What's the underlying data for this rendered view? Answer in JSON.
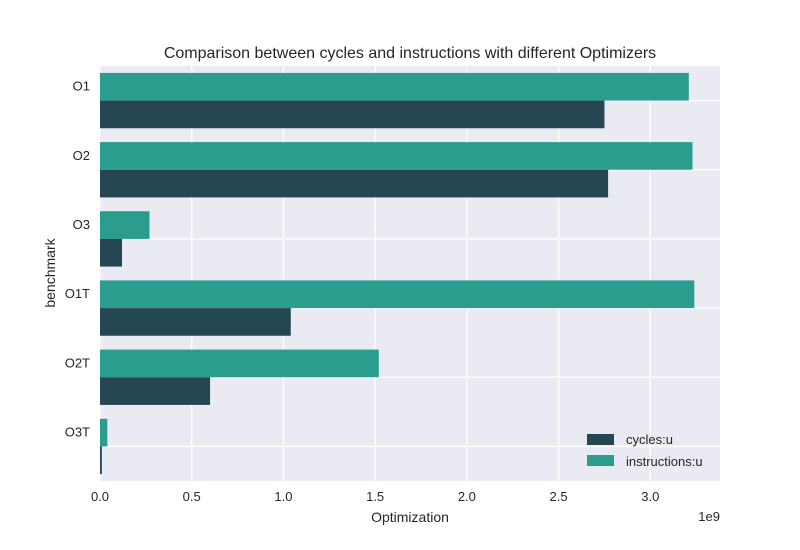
{
  "chart_data": {
    "type": "bar",
    "orientation": "horizontal",
    "title": "Comparison between cycles and instructions with different Optimizers",
    "xlabel": "Optimization",
    "ylabel": "benchmark",
    "x_offset_label": "1e9",
    "xlim": [
      0,
      3.38
    ],
    "xticks": [
      0.0,
      0.5,
      1.0,
      1.5,
      2.0,
      2.5,
      3.0
    ],
    "xtick_labels": [
      "0.0",
      "0.5",
      "1.0",
      "1.5",
      "2.0",
      "2.5",
      "3.0"
    ],
    "categories": [
      "O1",
      "O2",
      "O3",
      "O1T",
      "O2T",
      "O3T"
    ],
    "series": [
      {
        "name": "cycles:u",
        "color": "#264653",
        "values": [
          2.75,
          2.77,
          0.12,
          1.04,
          0.6,
          0.01
        ]
      },
      {
        "name": "instructions:u",
        "color": "#2a9d8f",
        "values": [
          3.21,
          3.23,
          0.27,
          3.24,
          1.52,
          0.04
        ]
      }
    ],
    "grid": true,
    "legend_position": "lower-right",
    "plot_background": "#eaeaf2"
  }
}
